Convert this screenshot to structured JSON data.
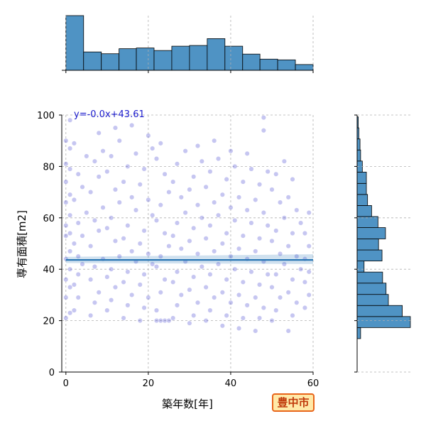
{
  "city_badge": "豊中市",
  "chart_data": {
    "type": "scatter",
    "xlabel": "築年数[年]",
    "ylabel": "専有面積[m2]",
    "xlim": [
      -1,
      60
    ],
    "ylim": [
      0,
      100
    ],
    "x_ticks": [
      0,
      20,
      40,
      60
    ],
    "y_ticks": [
      0,
      20,
      40,
      60,
      80,
      100
    ],
    "grid": true,
    "point_color": "#3333cc",
    "hist_color": "#4f93c4",
    "regression": {
      "label": "y=-0.0x+43.61",
      "slope": -0.0,
      "intercept": 43.61,
      "color": "#2a77b4"
    },
    "x_histogram": {
      "bin_edges": [
        0,
        4.3,
        8.6,
        12.9,
        17.1,
        21.4,
        25.7,
        30.0,
        34.3,
        38.6,
        42.9,
        47.1,
        51.4,
        55.7,
        60
      ],
      "counts": [
        152,
        51,
        46,
        60,
        62,
        55,
        67,
        69,
        88,
        67,
        45,
        31,
        29,
        16
      ]
    },
    "y_histogram": {
      "bin_edges": [
        13,
        17.3,
        21.6,
        25.9,
        30.2,
        34.6,
        38.9,
        43.2,
        47.5,
        51.8,
        56.2,
        60.5,
        64.8,
        69.1,
        73.4,
        77.8,
        82.1,
        86.4,
        90.7,
        95.0,
        99.3
      ],
      "counts": [
        6,
        92,
        78,
        54,
        50,
        44,
        12,
        43,
        37,
        49,
        36,
        25,
        18,
        16,
        16,
        9,
        6,
        5,
        3,
        2
      ]
    },
    "scatter_points": [
      [
        0,
        21
      ],
      [
        1,
        23
      ],
      [
        0,
        29
      ],
      [
        1,
        33
      ],
      [
        0,
        36
      ],
      [
        1,
        40
      ],
      [
        0,
        44
      ],
      [
        1,
        47
      ],
      [
        0,
        53
      ],
      [
        1,
        54
      ],
      [
        0,
        57
      ],
      [
        1,
        61
      ],
      [
        0,
        66
      ],
      [
        1,
        69
      ],
      [
        0,
        74
      ],
      [
        1,
        79
      ],
      [
        0,
        81
      ],
      [
        1,
        87
      ],
      [
        0,
        90
      ],
      [
        2,
        24
      ],
      [
        3,
        29
      ],
      [
        2,
        34
      ],
      [
        3,
        38
      ],
      [
        4,
        42
      ],
      [
        3,
        45
      ],
      [
        2,
        50
      ],
      [
        4,
        53
      ],
      [
        3,
        58
      ],
      [
        5,
        62
      ],
      [
        2,
        67
      ],
      [
        4,
        72
      ],
      [
        3,
        77
      ],
      [
        5,
        84
      ],
      [
        2,
        89
      ],
      [
        1,
        98
      ],
      [
        6,
        22
      ],
      [
        7,
        27
      ],
      [
        8,
        31
      ],
      [
        6,
        36
      ],
      [
        7,
        41
      ],
      [
        9,
        44
      ],
      [
        6,
        49
      ],
      [
        8,
        55
      ],
      [
        7,
        59
      ],
      [
        9,
        64
      ],
      [
        6,
        70
      ],
      [
        8,
        76
      ],
      [
        7,
        82
      ],
      [
        9,
        86
      ],
      [
        8,
        93
      ],
      [
        10,
        24
      ],
      [
        11,
        28
      ],
      [
        12,
        33
      ],
      [
        10,
        37
      ],
      [
        11,
        40
      ],
      [
        13,
        45
      ],
      [
        12,
        51
      ],
      [
        10,
        56
      ],
      [
        11,
        60
      ],
      [
        13,
        66
      ],
      [
        12,
        71
      ],
      [
        10,
        78
      ],
      [
        11,
        84
      ],
      [
        13,
        90
      ],
      [
        12,
        95
      ],
      [
        14,
        21
      ],
      [
        15,
        26
      ],
      [
        16,
        30
      ],
      [
        14,
        35
      ],
      [
        15,
        39
      ],
      [
        17,
        43
      ],
      [
        16,
        47
      ],
      [
        14,
        52
      ],
      [
        15,
        57
      ],
      [
        17,
        63
      ],
      [
        16,
        68
      ],
      [
        14,
        74
      ],
      [
        15,
        80
      ],
      [
        17,
        85
      ],
      [
        16,
        96
      ],
      [
        18,
        20
      ],
      [
        19,
        25
      ],
      [
        20,
        29
      ],
      [
        18,
        34
      ],
      [
        19,
        38
      ],
      [
        21,
        42
      ],
      [
        20,
        46
      ],
      [
        18,
        50
      ],
      [
        19,
        55
      ],
      [
        21,
        61
      ],
      [
        20,
        67
      ],
      [
        18,
        73
      ],
      [
        19,
        79
      ],
      [
        21,
        87
      ],
      [
        20,
        92
      ],
      [
        22,
        20
      ],
      [
        23,
        20
      ],
      [
        24,
        20
      ],
      [
        25,
        20
      ],
      [
        22,
        24
      ],
      [
        23,
        31
      ],
      [
        24,
        36
      ],
      [
        22,
        41
      ],
      [
        23,
        45
      ],
      [
        25,
        49
      ],
      [
        24,
        54
      ],
      [
        22,
        59
      ],
      [
        23,
        65
      ],
      [
        25,
        70
      ],
      [
        24,
        77
      ],
      [
        22,
        83
      ],
      [
        23,
        89
      ],
      [
        26,
        21
      ],
      [
        27,
        26
      ],
      [
        28,
        30
      ],
      [
        26,
        35
      ],
      [
        27,
        39
      ],
      [
        29,
        43
      ],
      [
        28,
        48
      ],
      [
        26,
        53
      ],
      [
        27,
        58
      ],
      [
        29,
        62
      ],
      [
        28,
        68
      ],
      [
        26,
        74
      ],
      [
        27,
        81
      ],
      [
        29,
        86
      ],
      [
        30,
        19
      ],
      [
        31,
        22
      ],
      [
        32,
        27
      ],
      [
        30,
        32
      ],
      [
        31,
        37
      ],
      [
        33,
        41
      ],
      [
        32,
        46
      ],
      [
        30,
        51
      ],
      [
        31,
        56
      ],
      [
        33,
        60
      ],
      [
        32,
        65
      ],
      [
        30,
        71
      ],
      [
        31,
        76
      ],
      [
        33,
        82
      ],
      [
        32,
        88
      ],
      [
        34,
        20
      ],
      [
        35,
        24
      ],
      [
        36,
        29
      ],
      [
        34,
        33
      ],
      [
        35,
        38
      ],
      [
        37,
        42
      ],
      [
        36,
        47
      ],
      [
        34,
        52
      ],
      [
        35,
        57
      ],
      [
        37,
        61
      ],
      [
        36,
        66
      ],
      [
        34,
        72
      ],
      [
        35,
        78
      ],
      [
        37,
        83
      ],
      [
        36,
        90
      ],
      [
        38,
        18
      ],
      [
        39,
        22
      ],
      [
        40,
        27
      ],
      [
        38,
        31
      ],
      [
        39,
        36
      ],
      [
        41,
        40
      ],
      [
        40,
        45
      ],
      [
        38,
        50
      ],
      [
        39,
        54
      ],
      [
        41,
        59
      ],
      [
        40,
        64
      ],
      [
        38,
        69
      ],
      [
        39,
        75
      ],
      [
        41,
        80
      ],
      [
        40,
        86
      ],
      [
        42,
        17
      ],
      [
        43,
        21
      ],
      [
        44,
        26
      ],
      [
        42,
        30
      ],
      [
        43,
        35
      ],
      [
        45,
        39
      ],
      [
        44,
        44
      ],
      [
        42,
        48
      ],
      [
        43,
        53
      ],
      [
        45,
        58
      ],
      [
        44,
        63
      ],
      [
        42,
        68
      ],
      [
        43,
        74
      ],
      [
        45,
        79
      ],
      [
        44,
        85
      ],
      [
        46,
        16
      ],
      [
        47,
        21
      ],
      [
        48,
        25
      ],
      [
        46,
        29
      ],
      [
        47,
        34
      ],
      [
        49,
        38
      ],
      [
        48,
        43
      ],
      [
        46,
        47
      ],
      [
        47,
        52
      ],
      [
        49,
        57
      ],
      [
        48,
        62
      ],
      [
        46,
        67
      ],
      [
        47,
        73
      ],
      [
        49,
        78
      ],
      [
        48,
        94
      ],
      [
        48,
        99
      ],
      [
        50,
        20
      ],
      [
        51,
        24
      ],
      [
        52,
        29
      ],
      [
        50,
        33
      ],
      [
        51,
        38
      ],
      [
        53,
        42
      ],
      [
        52,
        46
      ],
      [
        50,
        51
      ],
      [
        51,
        55
      ],
      [
        53,
        60
      ],
      [
        52,
        66
      ],
      [
        50,
        71
      ],
      [
        51,
        77
      ],
      [
        53,
        82
      ],
      [
        54,
        16
      ],
      [
        55,
        22
      ],
      [
        56,
        27
      ],
      [
        54,
        31
      ],
      [
        55,
        36
      ],
      [
        57,
        40
      ],
      [
        56,
        45
      ],
      [
        54,
        49
      ],
      [
        55,
        54
      ],
      [
        57,
        58
      ],
      [
        56,
        63
      ],
      [
        54,
        68
      ],
      [
        55,
        75
      ],
      [
        58,
        25
      ],
      [
        59,
        30
      ],
      [
        58,
        35
      ],
      [
        59,
        39
      ],
      [
        58,
        44
      ],
      [
        59,
        49
      ],
      [
        58,
        54
      ],
      [
        59,
        62
      ]
    ]
  }
}
